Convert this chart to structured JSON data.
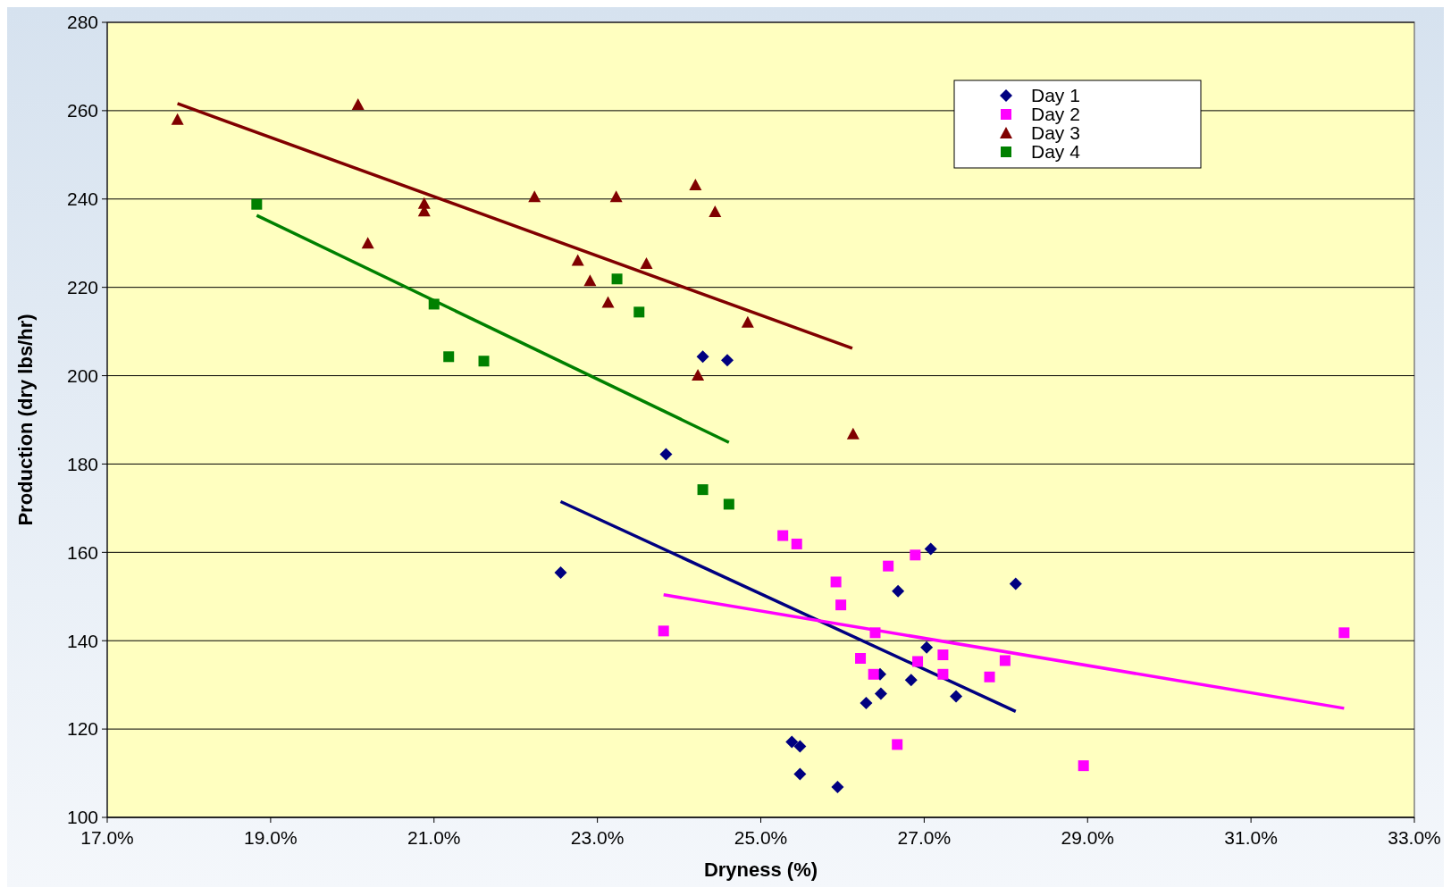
{
  "chart_data": {
    "type": "scatter",
    "xlabel": "Dryness (%)",
    "ylabel": "Production (dry lbs/hr)",
    "xlim": [
      17,
      33
    ],
    "xticks": [
      {
        "value": 17,
        "label": "17.0%"
      },
      {
        "value": 19,
        "label": "19.0%"
      },
      {
        "value": 21,
        "label": "21.0%"
      },
      {
        "value": 23,
        "label": "23.0%"
      },
      {
        "value": 25,
        "label": "25.0%"
      },
      {
        "value": 27,
        "label": "27.0%"
      },
      {
        "value": 29,
        "label": "29.0%"
      },
      {
        "value": 31,
        "label": "31.0%"
      },
      {
        "value": 33,
        "label": "33.0%"
      }
    ],
    "ylim": [
      100,
      280
    ],
    "yticks": [
      100,
      120,
      140,
      160,
      180,
      200,
      220,
      240,
      260,
      280
    ],
    "grid": "y",
    "legend": "top right",
    "series": [
      {
        "name": "Day 1",
        "color": "#000080",
        "marker": "diamond",
        "x": [
          22.55,
          23.84,
          24.29,
          24.59,
          25.38,
          25.48,
          25.48,
          25.94,
          26.29,
          26.46,
          26.47,
          26.68,
          26.84,
          27.03,
          27.08,
          27.39,
          28.12
        ],
        "values": [
          155.4,
          182.2,
          204.3,
          203.5,
          117.1,
          116.1,
          109.8,
          106.9,
          125.9,
          132.4,
          128.0,
          151.2,
          131.1,
          138.5,
          160.8,
          127.4,
          152.9
        ]
      },
      {
        "name": "Day 2",
        "color": "#ff00ff",
        "marker": "square",
        "x": [
          23.81,
          25.27,
          25.44,
          25.92,
          25.98,
          26.22,
          26.38,
          26.4,
          26.56,
          26.67,
          26.89,
          26.92,
          27.23,
          27.23,
          27.8,
          27.99,
          28.95,
          32.14
        ],
        "values": [
          142.2,
          163.8,
          161.9,
          153.3,
          148.1,
          136.0,
          132.4,
          141.8,
          156.9,
          116.5,
          159.4,
          135.3,
          136.8,
          132.4,
          131.8,
          135.5,
          111.7,
          141.8
        ]
      },
      {
        "name": "Day 3",
        "color": "#800000",
        "marker": "triangle",
        "x": [
          17.86,
          20.07,
          20.88,
          20.88,
          20.19,
          22.23,
          22.76,
          22.91,
          23.13,
          23.23,
          23.6,
          24.2,
          24.23,
          24.44,
          24.84,
          26.13
        ],
        "values": [
          258.0,
          261.4,
          239.0,
          237.3,
          230.0,
          240.5,
          226.1,
          221.5,
          216.6,
          240.5,
          225.4,
          243.2,
          200.1,
          237.1,
          212.1,
          186.8
        ]
      },
      {
        "name": "Day 4",
        "color": "#008000",
        "marker": "square",
        "x": [
          18.83,
          21.0,
          21.18,
          21.61,
          23.24,
          23.51,
          24.29,
          24.61
        ],
        "values": [
          238.8,
          216.2,
          204.3,
          203.3,
          221.9,
          214.4,
          174.2,
          170.9
        ]
      },
      {
        "type": "line",
        "color": "#000080",
        "marker": "none",
        "x": [
          22.55,
          28.12
        ],
        "values": [
          171.5,
          124.0
        ]
      },
      {
        "type": "line",
        "color": "#ff00ff",
        "marker": "none",
        "x": [
          23.81,
          32.14
        ],
        "values": [
          150.4,
          124.7
        ]
      },
      {
        "type": "line",
        "color": "#800000",
        "marker": "none",
        "x": [
          17.86,
          26.12
        ],
        "values": [
          261.6,
          206.2
        ]
      },
      {
        "type": "line",
        "color": "#008000",
        "marker": "none",
        "x": [
          18.83,
          24.61
        ],
        "values": [
          236.3,
          184.9
        ]
      }
    ]
  }
}
